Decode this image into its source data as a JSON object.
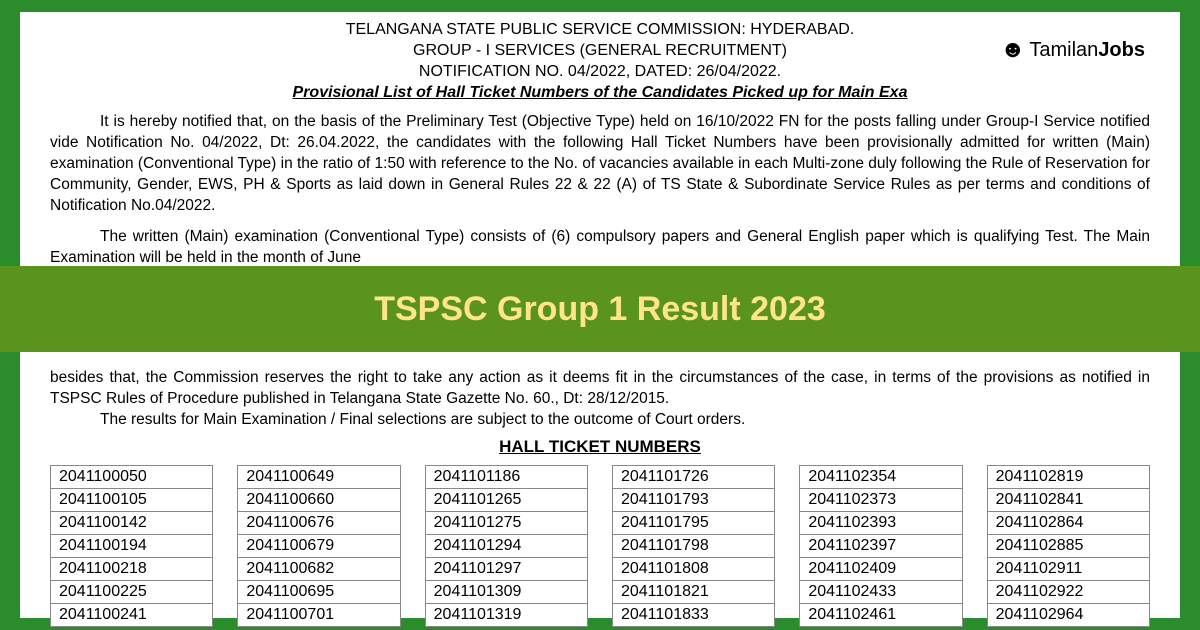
{
  "header": {
    "line1": "TELANGANA STATE PUBLIC SERVICE COMMISSION: HYDERABAD.",
    "line2": "GROUP - I SERVICES (GENERAL RECRUITMENT)",
    "line3": "NOTIFICATION NO. 04/2022, DATED: 26/04/2022."
  },
  "logo": {
    "brand": "Tamilan",
    "suffix": "Jobs"
  },
  "notice_title": "Provisional List of Hall Ticket Numbers of the Candidates Picked up for Main Exa",
  "para1": "It is hereby notified that, on the basis of the Preliminary Test (Objective Type) held on 16/10/2022 FN for the posts falling under Group-I Service notified vide Notification No. 04/2022, Dt: 26.04.2022, the candidates with the following Hall Ticket Numbers have been provisionally admitted for written (Main) examination (Conventional Type) in the ratio of 1:50 with reference to the No. of vacancies available in each Multi-zone duly following the Rule of Reservation for Community, Gender, EWS, PH & Sports as laid down in General Rules 22 & 22 (A) of TS State & Subordinate Service Rules as per terms and conditions of Notification No.04/2022.",
  "para2": "The written (Main) examination (Conventional Type) consists of (6) compulsory papers and General English paper which is qualifying Test. The Main Examination will be held in the month of June",
  "banner": {
    "text": "TSPSC Group 1 Result 2023",
    "bg_color": "#5b931f",
    "text_color": "#ffe48a",
    "fontsize": 34
  },
  "lower": {
    "para3a": "besides that, the Commission reserves the right to take any action as it deems fit in the circumstances of the case, in terms of the provisions as notified in TSPSC Rules of Procedure published in Telangana State Gazette No. 60., Dt: 28/12/2015.",
    "para3b": "The results for Main Examination / Final selections are subject to the outcome of Court orders.",
    "hall_heading": "HALL TICKET NUMBERS"
  },
  "tickets": {
    "columns": [
      [
        "2041100050",
        "2041100105",
        "2041100142",
        "2041100194",
        "2041100218",
        "2041100225",
        "2041100241"
      ],
      [
        "2041100649",
        "2041100660",
        "2041100676",
        "2041100679",
        "2041100682",
        "2041100695",
        "2041100701"
      ],
      [
        "2041101186",
        "2041101265",
        "2041101275",
        "2041101294",
        "2041101297",
        "2041101309",
        "2041101319"
      ],
      [
        "2041101726",
        "2041101793",
        "2041101795",
        "2041101798",
        "2041101808",
        "2041101821",
        "2041101833"
      ],
      [
        "2041102354",
        "2041102373",
        "2041102393",
        "2041102397",
        "2041102409",
        "2041102433",
        "2041102461"
      ],
      [
        "2041102819",
        "2041102841",
        "2041102864",
        "2041102885",
        "2041102911",
        "2041102922",
        "2041102964"
      ]
    ],
    "border_color": "#888888",
    "cell_fontsize": 16
  },
  "colors": {
    "page_bg": "#2a8c2a",
    "doc_bg": "#ffffff",
    "text": "#000000"
  }
}
